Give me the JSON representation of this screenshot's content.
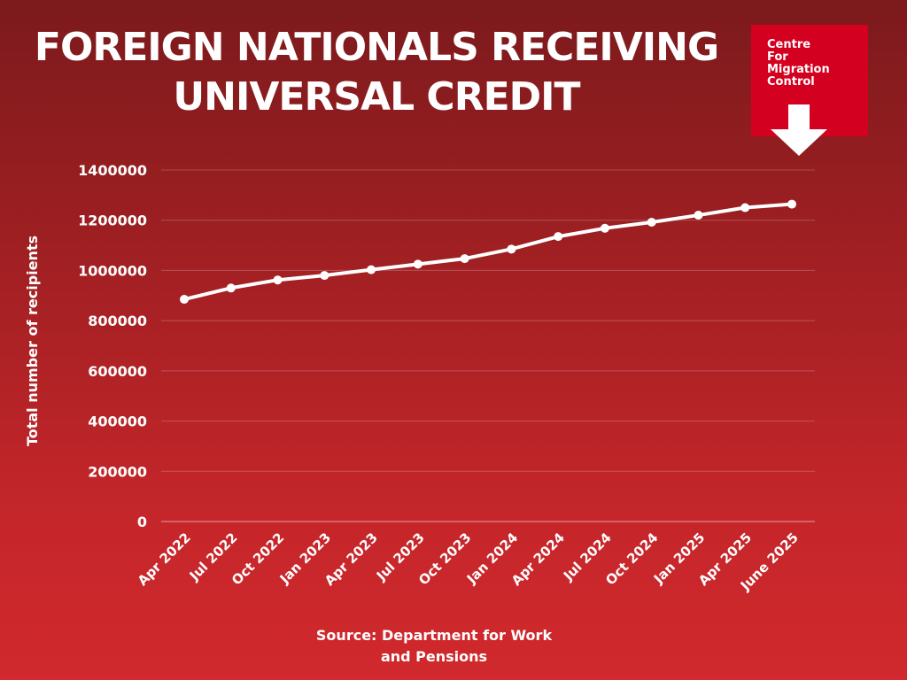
{
  "title": "FOREIGN NATIONALS RECEIVING\nUNIVERSAL CREDIT",
  "logo": {
    "text": "Centre\nFor\nMigration\nControl",
    "icon": "down-arrow-icon",
    "color": "#d4001f"
  },
  "source": "Source: Department for Work\nand Pensions",
  "chart_data": {
    "type": "line",
    "title": "FOREIGN NATIONALS RECEIVING UNIVERSAL CREDIT",
    "xlabel": "",
    "ylabel": "Total number of recipients",
    "categories": [
      "Apr 2022",
      "Jul 2022",
      "Oct 2022",
      "Jan 2023",
      "Apr 2023",
      "Jul 2023",
      "Oct 2023",
      "Jan 2024",
      "Apr 2024",
      "Jul 2024",
      "Oct 2024",
      "Jan 2025",
      "Apr 2025",
      "June 2025"
    ],
    "series": [
      {
        "name": "",
        "values": [
          885000,
          930000,
          962000,
          980000,
          1003000,
          1025000,
          1047000,
          1085000,
          1135000,
          1168000,
          1192000,
          1220000,
          1250000,
          1264000
        ],
        "color": "#ffffff"
      }
    ],
    "ylim": [
      0,
      1400000
    ],
    "yticks": [
      "0",
      "200000",
      "400000",
      "600000",
      "800000",
      "1000000",
      "1200000",
      "1400000"
    ],
    "grid": true,
    "legend": "none"
  }
}
